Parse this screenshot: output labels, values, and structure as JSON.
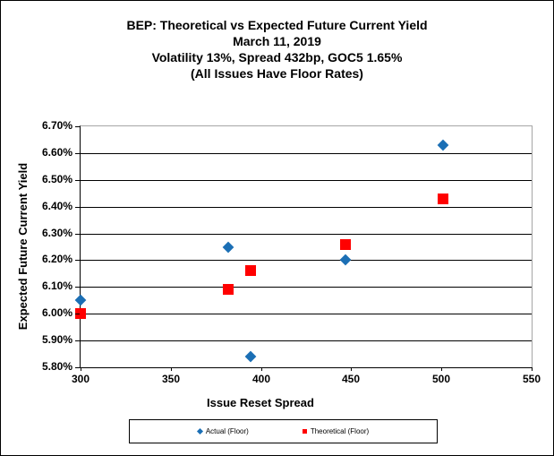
{
  "title": {
    "lines": [
      "BEP: Theoretical vs Expected Future Current Yield",
      "March 11, 2019",
      "Volatility 13%, Spread 432bp, GOC5 1.65%",
      "(All Issues Have Floor Rates)"
    ]
  },
  "colors": {
    "actual": "#1B6FB5",
    "theoretical": "#FF0000",
    "gridline": "#000000",
    "plot_border": "#A6A6A6",
    "text": "#000000",
    "background": "#FFFFFF"
  },
  "chart_data": {
    "type": "scatter",
    "title": "BEP: Theoretical vs Expected Future Current Yield",
    "subtitle": [
      "March 11, 2019",
      "Volatility 13%, Spread 432bp, GOC5 1.65%",
      "(All Issues Have Floor Rates)"
    ],
    "xlabel": "Issue Reset Spread",
    "ylabel": "Expected Future Current Yield",
    "xlim": [
      300,
      550
    ],
    "ylim": [
      5.8,
      6.7
    ],
    "x_ticks": [
      300,
      350,
      400,
      450,
      500,
      550
    ],
    "y_ticks": [
      6.7,
      6.6,
      6.5,
      6.4,
      6.3,
      6.2,
      6.1,
      6.0,
      5.9,
      5.8
    ],
    "y_tick_format": "percent2",
    "grid": true,
    "legend_position": "bottom",
    "series": [
      {
        "name": "Actual (Floor)",
        "marker": "diamond",
        "color": "#1B6FB5",
        "points": [
          [
            300,
            6.05
          ],
          [
            382,
            6.25
          ],
          [
            394,
            5.84
          ],
          [
            447,
            6.2
          ],
          [
            501,
            6.63
          ]
        ]
      },
      {
        "name": "Theoretical (Floor)",
        "marker": "square",
        "color": "#FF0000",
        "points": [
          [
            300,
            6.0
          ],
          [
            382,
            6.09
          ],
          [
            394,
            6.16
          ],
          [
            447,
            6.26
          ],
          [
            501,
            6.43
          ]
        ]
      }
    ]
  },
  "legend": {
    "items": [
      {
        "label": "Actual (Floor)",
        "marker": "diamond",
        "color": "#1B6FB5"
      },
      {
        "label": "Theoretical (Floor)",
        "marker": "square",
        "color": "#FF0000"
      }
    ]
  }
}
